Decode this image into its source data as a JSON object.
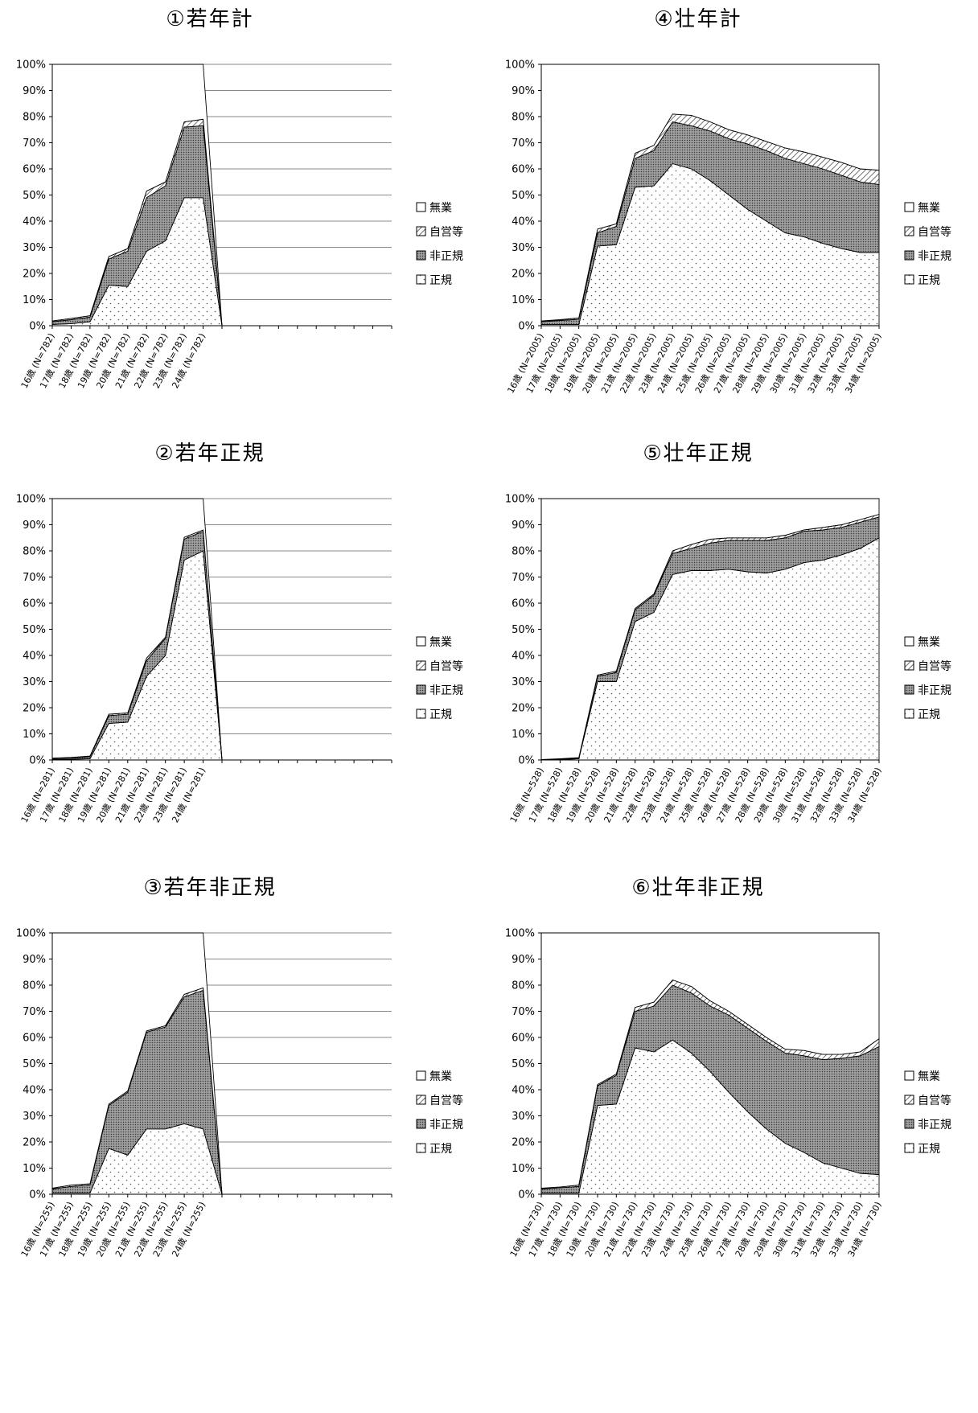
{
  "chart_data": [
    {
      "type": "area",
      "title": "①若年計",
      "x": [
        "16歳 (N=782)",
        "17歳 (N=782)",
        "18歳 (N=782)",
        "19歳 (N=782)",
        "20歳 (N=782)",
        "21歳 (N=782)",
        "22歳 (N=782)",
        "23歳 (N=782)",
        "24歳 (N=782)"
      ],
      "yticks": [
        "0%",
        "10%",
        "20%",
        "30%",
        "40%",
        "50%",
        "60%",
        "70%",
        "80%",
        "90%",
        "100%"
      ],
      "ylim": [
        0,
        100
      ],
      "stacked": true,
      "legend": [
        "無業",
        "自営等",
        "非正規",
        "正規"
      ],
      "legend_position": "right",
      "grid": true,
      "series": [
        {
          "name": "正規",
          "values": [
            0.5,
            0.8,
            1.5,
            15.5,
            15.0,
            28.5,
            32.5,
            49.0,
            49.0
          ]
        },
        {
          "name": "非正規",
          "values": [
            1.0,
            1.5,
            1.8,
            10.0,
            13.5,
            20.5,
            21.0,
            27.0,
            27.5
          ]
        },
        {
          "name": "自営等",
          "values": [
            0.3,
            0.5,
            0.5,
            1.0,
            1.0,
            2.5,
            1.5,
            2.0,
            2.5
          ]
        },
        {
          "name": "無業",
          "values": [
            98.2,
            97.2,
            96.2,
            73.5,
            70.5,
            48.5,
            45.0,
            22.0,
            21.0
          ]
        }
      ]
    },
    {
      "type": "area",
      "title": "②若年正規",
      "x": [
        "16歳 (N=281)",
        "17歳 (N=281)",
        "18歳 (N=281)",
        "19歳 (N=281)",
        "20歳 (N=281)",
        "21歳 (N=281)",
        "22歳 (N=281)",
        "23歳 (N=281)",
        "24歳 (N=281)"
      ],
      "yticks": [
        "0%",
        "10%",
        "20%",
        "30%",
        "40%",
        "50%",
        "60%",
        "70%",
        "80%",
        "90%",
        "100%"
      ],
      "ylim": [
        0,
        100
      ],
      "stacked": true,
      "legend": [
        "無業",
        "自営等",
        "非正規",
        "正規"
      ],
      "legend_position": "right",
      "grid": true,
      "series": [
        {
          "name": "正規",
          "values": [
            0.2,
            0.3,
            0.5,
            14.0,
            14.5,
            32.0,
            40.0,
            76.5,
            80.0
          ]
        },
        {
          "name": "非正規",
          "values": [
            0.3,
            0.5,
            0.8,
            3.0,
            3.0,
            6.0,
            6.5,
            8.0,
            7.5
          ]
        },
        {
          "name": "自営等",
          "values": [
            0.2,
            0.2,
            0.2,
            0.5,
            0.5,
            1.0,
            0.5,
            0.7,
            0.5
          ]
        },
        {
          "name": "無業",
          "values": [
            99.3,
            99.0,
            98.5,
            82.5,
            82.0,
            61.0,
            53.0,
            14.8,
            12.0
          ]
        }
      ]
    },
    {
      "type": "area",
      "title": "③若年非正規",
      "x": [
        "16歳 (N=255)",
        "17歳 (N=255)",
        "18歳 (N=255)",
        "19歳 (N=255)",
        "20歳 (N=255)",
        "21歳 (N=255)",
        "22歳 (N=255)",
        "23歳 (N=255)",
        "24歳 (N=255)"
      ],
      "yticks": [
        "0%",
        "10%",
        "20%",
        "30%",
        "40%",
        "50%",
        "60%",
        "70%",
        "80%",
        "90%",
        "100%"
      ],
      "ylim": [
        0,
        100
      ],
      "stacked": true,
      "legend": [
        "無業",
        "自営等",
        "非正規",
        "正規"
      ],
      "legend_position": "right",
      "grid": true,
      "series": [
        {
          "name": "正規",
          "values": [
            0.5,
            0.5,
            0.5,
            17.5,
            15.0,
            25.0,
            25.0,
            27.0,
            25.0
          ]
        },
        {
          "name": "非正規",
          "values": [
            1.5,
            2.5,
            3.0,
            16.5,
            24.0,
            37.0,
            39.0,
            48.5,
            53.0
          ]
        },
        {
          "name": "自営等",
          "values": [
            0.3,
            0.5,
            0.5,
            0.5,
            0.5,
            0.5,
            0.5,
            1.0,
            1.0
          ]
        },
        {
          "name": "無業",
          "values": [
            97.7,
            96.5,
            96.0,
            65.5,
            60.5,
            37.5,
            35.5,
            23.5,
            21.0
          ]
        }
      ]
    },
    {
      "type": "area",
      "title": "④壮年計",
      "x": [
        "16歳 (N=2005)",
        "17歳 (N=2005)",
        "18歳 (N=2005)",
        "19歳 (N=2005)",
        "20歳 (N=2005)",
        "21歳 (N=2005)",
        "22歳 (N=2005)",
        "23歳 (N=2005)",
        "24歳 (N=2005)",
        "25歳 (N=2005)",
        "26歳 (N=2005)",
        "27歳 (N=2005)",
        "28歳 (N=2005)",
        "29歳 (N=2005)",
        "30歳 (N=2005)",
        "31歳 (N=2005)",
        "32歳 (N=2005)",
        "33歳 (N=2005)",
        "34歳 (N=2005)"
      ],
      "yticks": [
        "0%",
        "10%",
        "20%",
        "30%",
        "40%",
        "50%",
        "60%",
        "70%",
        "80%",
        "90%",
        "100%"
      ],
      "ylim": [
        0,
        100
      ],
      "stacked": true,
      "legend": [
        "無業",
        "自営等",
        "非正規",
        "正規"
      ],
      "legend_position": "right",
      "grid": true,
      "series": [
        {
          "name": "正規",
          "values": [
            0.5,
            0.5,
            0.5,
            30.5,
            31.0,
            53.0,
            53.5,
            62.0,
            60.0,
            55.5,
            50.0,
            44.5,
            40.0,
            35.5,
            34.0,
            31.5,
            29.5,
            28.0,
            28.0
          ]
        },
        {
          "name": "非正規",
          "values": [
            1.0,
            1.5,
            2.0,
            5.0,
            7.0,
            11.0,
            13.5,
            16.0,
            16.5,
            19.0,
            21.5,
            25.0,
            27.0,
            28.5,
            28.0,
            28.5,
            28.0,
            27.0,
            26.0
          ]
        },
        {
          "name": "自営等",
          "values": [
            0.3,
            0.3,
            0.5,
            1.5,
            1.0,
            2.0,
            2.0,
            3.0,
            4.0,
            3.5,
            3.5,
            3.5,
            3.5,
            4.0,
            4.5,
            4.5,
            5.0,
            5.0,
            5.5
          ]
        },
        {
          "name": "無業",
          "values": [
            98.2,
            97.7,
            97.0,
            63.0,
            61.0,
            34.0,
            31.0,
            19.0,
            19.5,
            22.0,
            25.0,
            27.0,
            29.5,
            32.0,
            33.5,
            35.5,
            37.5,
            40.0,
            40.5
          ]
        }
      ]
    },
    {
      "type": "area",
      "title": "⑤壮年正規",
      "x": [
        "16歳 (N=528)",
        "17歳 (N=528)",
        "18歳 (N=528)",
        "19歳 (N=528)",
        "20歳 (N=528)",
        "21歳 (N=528)",
        "22歳 (N=528)",
        "23歳 (N=528)",
        "24歳 (N=528)",
        "25歳 (N=528)",
        "26歳 (N=528)",
        "27歳 (N=528)",
        "28歳 (N=528)",
        "29歳 (N=528)",
        "30歳 (N=528)",
        "31歳 (N=528)",
        "32歳 (N=528)",
        "33歳 (N=528)",
        "34歳 (N=528)"
      ],
      "yticks": [
        "0%",
        "10%",
        "20%",
        "30%",
        "40%",
        "50%",
        "60%",
        "70%",
        "80%",
        "90%",
        "100%"
      ],
      "ylim": [
        0,
        100
      ],
      "stacked": true,
      "legend": [
        "無業",
        "自営等",
        "非正規",
        "正規"
      ],
      "legend_position": "right",
      "grid": true,
      "series": [
        {
          "name": "正規",
          "values": [
            0.1,
            0.2,
            0.5,
            30.0,
            30.0,
            53.0,
            56.5,
            71.0,
            72.5,
            72.5,
            73.0,
            72.0,
            71.5,
            73.0,
            75.5,
            76.5,
            78.5,
            81.0,
            85.0
          ]
        },
        {
          "name": "非正規",
          "values": [
            0.1,
            0.2,
            0.3,
            2.0,
            3.5,
            4.5,
            6.5,
            8.0,
            8.5,
            10.5,
            11.0,
            12.0,
            12.5,
            12.0,
            12.0,
            11.5,
            10.5,
            10.0,
            8.0
          ]
        },
        {
          "name": "自営等",
          "values": [
            0.0,
            0.1,
            0.1,
            0.5,
            0.5,
            0.5,
            0.5,
            1.0,
            1.5,
            1.5,
            1.0,
            1.0,
            1.0,
            1.0,
            0.5,
            1.0,
            1.0,
            1.0,
            1.0
          ]
        },
        {
          "name": "無業",
          "values": [
            99.8,
            99.5,
            99.1,
            67.5,
            66.0,
            42.0,
            36.5,
            20.0,
            17.5,
            15.5,
            15.0,
            15.0,
            15.0,
            14.0,
            12.0,
            11.0,
            10.0,
            8.0,
            6.0
          ]
        }
      ]
    },
    {
      "type": "area",
      "title": "⑥壮年非正規",
      "x": [
        "16歳 (N=730)",
        "17歳 (N=730)",
        "18歳 (N=730)",
        "19歳 (N=730)",
        "20歳 (N=730)",
        "21歳 (N=730)",
        "22歳 (N=730)",
        "23歳 (N=730)",
        "24歳 (N=730)",
        "25歳 (N=730)",
        "26歳 (N=730)",
        "27歳 (N=730)",
        "28歳 (N=730)",
        "29歳 (N=730)",
        "30歳 (N=730)",
        "31歳 (N=730)",
        "32歳 (N=730)",
        "33歳 (N=730)",
        "34歳 (N=730)"
      ],
      "yticks": [
        "0%",
        "10%",
        "20%",
        "30%",
        "40%",
        "50%",
        "60%",
        "70%",
        "80%",
        "90%",
        "100%"
      ],
      "ylim": [
        0,
        100
      ],
      "stacked": true,
      "legend": [
        "無業",
        "自営等",
        "非正規",
        "正規"
      ],
      "legend_position": "right",
      "grid": true,
      "series": [
        {
          "name": "正規",
          "values": [
            0.5,
            0.5,
            0.5,
            34.0,
            34.5,
            56.0,
            54.5,
            59.0,
            54.0,
            47.0,
            39.0,
            31.5,
            25.0,
            19.5,
            16.0,
            12.0,
            10.0,
            8.0,
            7.5
          ]
        },
        {
          "name": "非正規",
          "values": [
            1.5,
            2.0,
            2.5,
            7.5,
            11.0,
            14.0,
            17.5,
            21.0,
            23.0,
            25.0,
            29.5,
            32.0,
            33.5,
            34.5,
            37.0,
            39.5,
            42.0,
            45.0,
            49.0
          ]
        },
        {
          "name": "自営等",
          "values": [
            0.3,
            0.3,
            0.5,
            0.5,
            0.5,
            1.5,
            1.5,
            2.0,
            2.5,
            2.0,
            1.5,
            1.5,
            1.5,
            1.5,
            2.0,
            2.0,
            1.5,
            1.5,
            3.0
          ]
        },
        {
          "name": "無業",
          "values": [
            97.7,
            97.2,
            96.5,
            58.0,
            54.0,
            28.5,
            26.5,
            18.0,
            20.5,
            26.0,
            30.0,
            35.0,
            40.0,
            44.5,
            45.0,
            46.5,
            46.5,
            45.5,
            40.5
          ]
        }
      ]
    }
  ]
}
